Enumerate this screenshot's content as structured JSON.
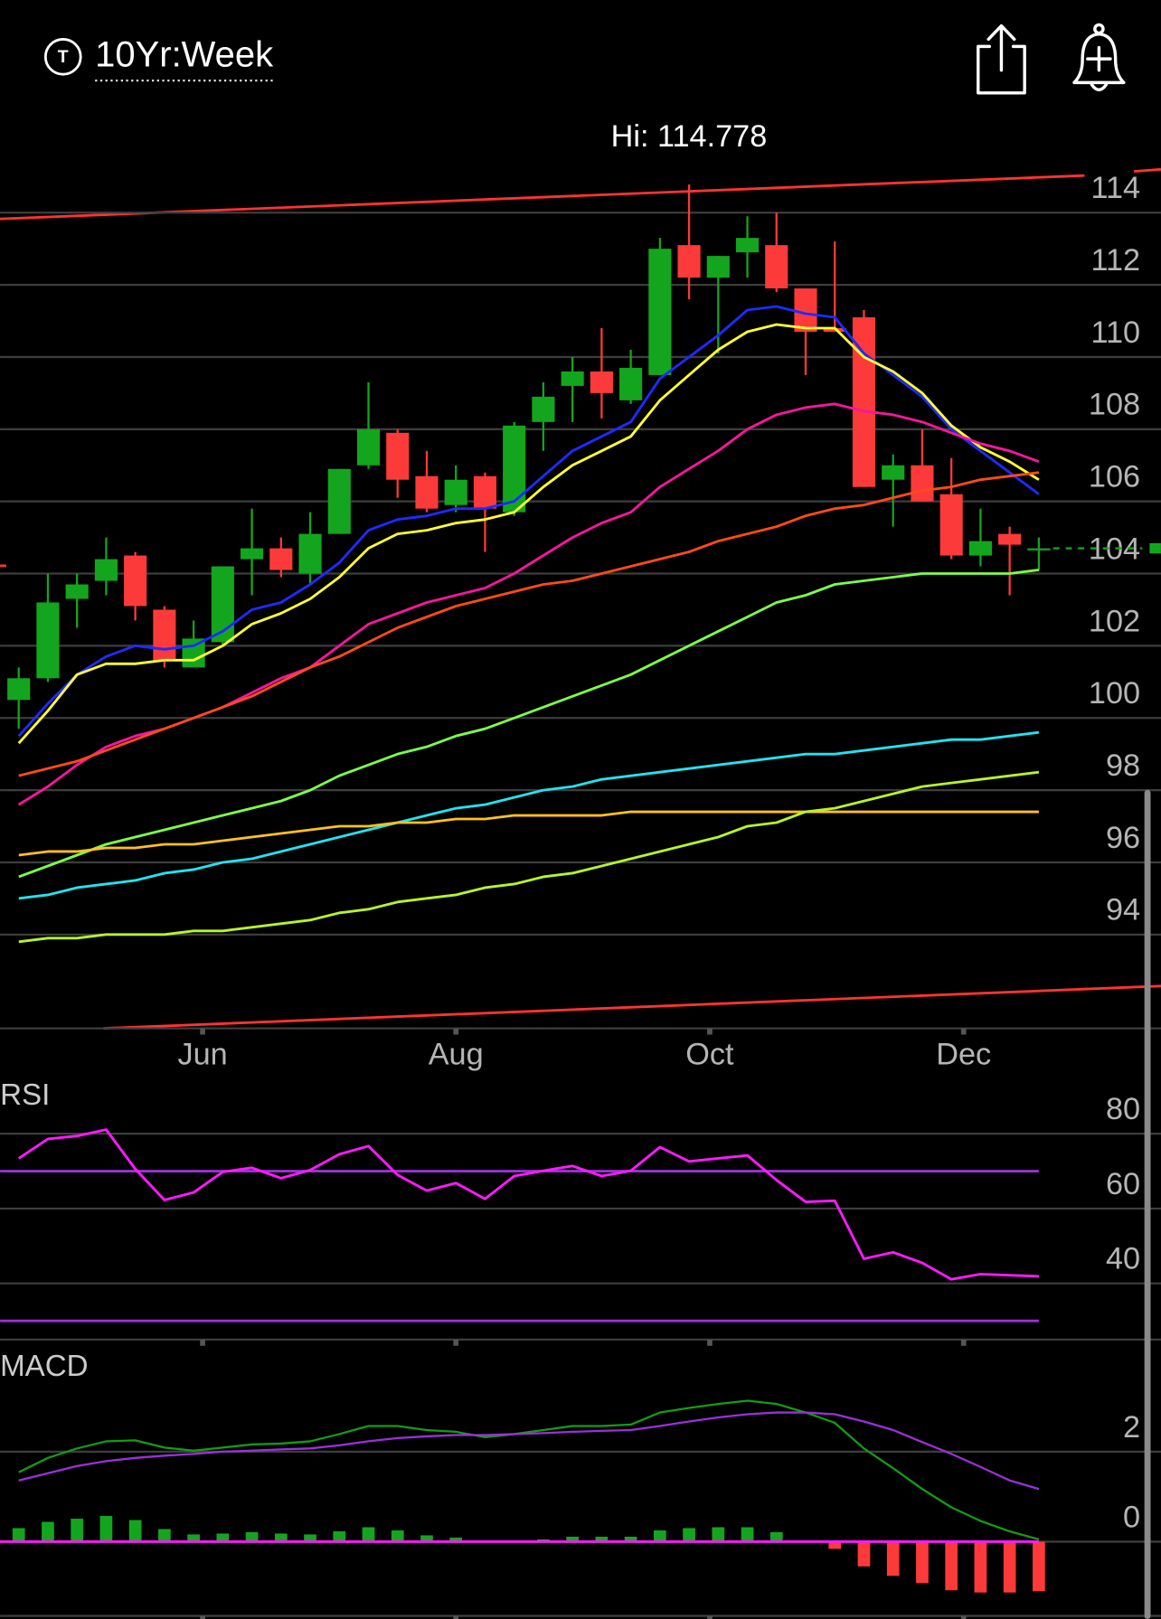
{
  "header": {
    "badge": "T",
    "title": "10Yr:Week"
  },
  "chart_data": [
    {
      "type": "candlestick",
      "annotation": "Hi: 114.778",
      "categories": [
        null,
        null,
        null,
        null,
        null,
        null,
        null,
        null,
        null,
        null,
        null,
        null,
        null,
        null,
        null,
        null,
        null,
        null,
        null,
        null,
        null,
        null,
        null,
        null,
        null,
        null,
        null,
        null,
        null,
        null,
        null,
        null,
        null,
        null,
        null,
        null
      ],
      "xlim": [
        -0.64,
        39.19
      ],
      "xticks": [
        {
          "value": 6.31,
          "label": "Jun"
        },
        {
          "value": 15.0,
          "label": "Aug"
        },
        {
          "value": 23.71,
          "label": "Oct"
        },
        {
          "value": 32.42,
          "label": "Dec"
        }
      ],
      "open": [
        100.5,
        101.1,
        103.3,
        103.8,
        104.5,
        103.0,
        101.4,
        102.1,
        104.4,
        104.7,
        104.0,
        105.1,
        107.0,
        107.9,
        106.7,
        105.9,
        106.7,
        105.7,
        108.2,
        109.2,
        109.6,
        108.8,
        109.5,
        113.1,
        112.2,
        112.9,
        113.1,
        111.9,
        110.8,
        111.1,
        106.6,
        107.0,
        106.2,
        104.5,
        105.1,
        104.7
      ],
      "high": [
        101.4,
        104.0,
        104.0,
        105.0,
        104.6,
        103.1,
        102.7,
        104.2,
        105.8,
        105.0,
        105.7,
        106.9,
        109.3,
        108.0,
        107.4,
        107.0,
        106.8,
        108.2,
        109.3,
        110.0,
        110.8,
        110.2,
        113.3,
        114.778,
        112.8,
        113.9,
        114.0,
        111.9,
        113.2,
        111.3,
        107.3,
        108.0,
        107.2,
        105.8,
        105.3,
        105.0
      ],
      "low": [
        99.7,
        101.0,
        102.5,
        103.4,
        102.7,
        101.4,
        101.4,
        102.0,
        103.4,
        103.9,
        103.7,
        105.1,
        106.9,
        106.1,
        105.7,
        105.7,
        104.6,
        105.6,
        107.4,
        108.2,
        108.3,
        108.7,
        109.5,
        111.6,
        110.1,
        112.2,
        111.8,
        109.5,
        110.7,
        106.4,
        105.3,
        106.0,
        104.4,
        104.2,
        103.4,
        104.1
      ],
      "close": [
        101.1,
        103.2,
        103.7,
        104.4,
        103.1,
        101.6,
        102.2,
        104.2,
        104.7,
        104.1,
        105.1,
        106.9,
        108.0,
        106.6,
        105.8,
        106.6,
        105.8,
        108.1,
        108.9,
        109.6,
        109.0,
        109.7,
        113.0,
        112.2,
        112.8,
        113.3,
        111.9,
        110.7,
        110.7,
        106.4,
        107.0,
        106.0,
        104.5,
        104.9,
        104.8,
        104.7
      ],
      "up_color": "#14a51e",
      "down_color": "#fc3a3a",
      "series": [
        {
          "color": "#1f2bff",
          "values": [
            99.5,
            100.4,
            101.2,
            101.7,
            102.0,
            101.9,
            102.0,
            102.4,
            103.0,
            103.2,
            103.7,
            104.3,
            105.2,
            105.5,
            105.6,
            105.8,
            105.8,
            106.0,
            106.7,
            107.4,
            107.8,
            108.2,
            109.4,
            110.0,
            110.6,
            111.3,
            111.4,
            111.2,
            111.1,
            110.1,
            109.5,
            108.9,
            108.0,
            107.4,
            106.8,
            106.2
          ]
        },
        {
          "color": "#ffff33",
          "values": [
            99.3,
            100.2,
            101.2,
            101.5,
            101.5,
            101.6,
            101.6,
            102.0,
            102.6,
            102.9,
            103.3,
            103.9,
            104.7,
            105.1,
            105.2,
            105.4,
            105.5,
            105.7,
            106.4,
            107.0,
            107.4,
            107.8,
            108.8,
            109.5,
            110.2,
            110.7,
            110.9,
            110.8,
            110.8,
            110.0,
            109.6,
            109.0,
            108.1,
            107.5,
            107.1,
            106.6
          ]
        },
        {
          "color": "#f5179c",
          "values": [
            97.6,
            98.1,
            98.7,
            99.2,
            99.5,
            99.7,
            100.0,
            100.3,
            100.7,
            101.1,
            101.4,
            102.0,
            102.6,
            102.9,
            103.2,
            103.4,
            103.6,
            104.0,
            104.5,
            105.0,
            105.4,
            105.7,
            106.4,
            106.9,
            107.4,
            108.0,
            108.4,
            108.6,
            108.7,
            108.5,
            108.4,
            108.2,
            107.9,
            107.6,
            107.4,
            107.1
          ]
        },
        {
          "color": "#ff4a1c",
          "values": [
            98.4,
            98.6,
            98.8,
            99.1,
            99.4,
            99.7,
            100.0,
            100.3,
            100.6,
            101.0,
            101.4,
            101.7,
            102.1,
            102.5,
            102.8,
            103.1,
            103.3,
            103.5,
            103.7,
            103.8,
            104.0,
            104.2,
            104.4,
            104.6,
            104.9,
            105.1,
            105.3,
            105.6,
            105.8,
            105.9,
            106.1,
            106.3,
            106.4,
            106.6,
            106.7,
            106.8
          ]
        },
        {
          "color": "#7dff4a",
          "values": [
            95.6,
            95.9,
            96.2,
            96.5,
            96.7,
            96.9,
            97.1,
            97.3,
            97.5,
            97.7,
            98.0,
            98.4,
            98.7,
            99.0,
            99.2,
            99.5,
            99.7,
            100.0,
            100.3,
            100.6,
            100.9,
            101.2,
            101.6,
            102.0,
            102.4,
            102.8,
            103.2,
            103.4,
            103.7,
            103.8,
            103.9,
            104.0,
            104.0,
            104.0,
            104.0,
            104.1
          ]
        },
        {
          "color": "#22e3f0",
          "values": [
            95.0,
            95.1,
            95.3,
            95.4,
            95.5,
            95.7,
            95.8,
            96.0,
            96.1,
            96.3,
            96.5,
            96.7,
            96.9,
            97.1,
            97.3,
            97.5,
            97.6,
            97.8,
            98.0,
            98.1,
            98.3,
            98.4,
            98.5,
            98.6,
            98.7,
            98.8,
            98.9,
            99.0,
            99.0,
            99.1,
            99.2,
            99.3,
            99.4,
            99.4,
            99.5,
            99.6
          ]
        },
        {
          "color": "#ffc21a",
          "values": [
            96.2,
            96.3,
            96.3,
            96.4,
            96.4,
            96.5,
            96.5,
            96.6,
            96.7,
            96.8,
            96.9,
            97.0,
            97.0,
            97.1,
            97.1,
            97.2,
            97.2,
            97.3,
            97.3,
            97.3,
            97.3,
            97.4,
            97.4,
            97.4,
            97.4,
            97.4,
            97.4,
            97.4,
            97.4,
            97.4,
            97.4,
            97.4,
            97.4,
            97.4,
            97.4,
            97.4
          ]
        },
        {
          "color": "#b6f52a",
          "values": [
            93.8,
            93.9,
            93.9,
            94.0,
            94.0,
            94.0,
            94.1,
            94.1,
            94.2,
            94.3,
            94.4,
            94.6,
            94.7,
            94.9,
            95.0,
            95.1,
            95.3,
            95.4,
            95.6,
            95.7,
            95.9,
            96.1,
            96.3,
            96.5,
            96.7,
            97.0,
            97.1,
            97.4,
            97.5,
            97.7,
            97.9,
            98.1,
            98.2,
            98.3,
            98.4,
            98.5
          ]
        }
      ],
      "ylim": [
        91.4,
        115.6
      ],
      "yticks": [
        94,
        96,
        98,
        100,
        102,
        104,
        106,
        108,
        110,
        112,
        114
      ],
      "grid": true
    },
    {
      "type": "line",
      "title": "RSI",
      "color": "#ff1aff",
      "values": [
        73.4,
        78.6,
        79.4,
        81.1,
        70.6,
        62.3,
        64.3,
        69.8,
        70.9,
        68.1,
        70.3,
        74.5,
        76.7,
        69.0,
        64.8,
        66.8,
        62.6,
        68.7,
        70.1,
        71.4,
        68.7,
        70.1,
        76.4,
        72.6,
        73.4,
        74.2,
        67.6,
        61.8,
        62.1,
        46.6,
        48.3,
        45.5,
        41.1,
        42.5,
        42.2,
        41.9
      ],
      "levels": [
        70,
        30
      ],
      "level_color": "#9b30d9",
      "ylim": [
        25,
        95
      ],
      "yticks": [
        40,
        60,
        80
      ],
      "grid": true
    },
    {
      "type": "macd",
      "title": "MACD",
      "series": [
        {
          "color": "#149c14",
          "values": [
            1.54,
            1.86,
            2.07,
            2.23,
            2.25,
            2.09,
            2.02,
            2.09,
            2.16,
            2.18,
            2.23,
            2.39,
            2.57,
            2.57,
            2.48,
            2.44,
            2.32,
            2.39,
            2.48,
            2.57,
            2.57,
            2.6,
            2.87,
            2.97,
            3.06,
            3.13,
            3.06,
            2.87,
            2.64,
            2.07,
            1.63,
            1.17,
            0.76,
            0.46,
            0.23,
            0.05
          ]
        },
        {
          "color": "#9b30d9",
          "values": [
            1.36,
            1.52,
            1.68,
            1.79,
            1.86,
            1.91,
            1.95,
            2.0,
            2.02,
            2.05,
            2.07,
            2.14,
            2.23,
            2.3,
            2.34,
            2.37,
            2.37,
            2.39,
            2.41,
            2.44,
            2.46,
            2.48,
            2.57,
            2.67,
            2.76,
            2.83,
            2.87,
            2.87,
            2.83,
            2.67,
            2.48,
            2.21,
            1.95,
            1.66,
            1.36,
            1.17
          ]
        }
      ],
      "histogram": [
        0.3,
        0.44,
        0.51,
        0.57,
        0.48,
        0.28,
        0.16,
        0.18,
        0.21,
        0.18,
        0.16,
        0.23,
        0.32,
        0.25,
        0.14,
        0.09,
        0.02,
        0.02,
        0.05,
        0.11,
        0.11,
        0.11,
        0.25,
        0.3,
        0.32,
        0.32,
        0.21,
        0,
        -0.16,
        -0.55,
        -0.76,
        -0.92,
        -1.08,
        -1.13,
        -1.13,
        -1.1
      ],
      "up_color": "#14a51e",
      "down_color": "#fc3a3a",
      "baseline_color": "#ff1aff",
      "ylim": [
        -1.65,
        4.2
      ],
      "yticks": [
        0,
        2
      ],
      "grid": true
    }
  ]
}
